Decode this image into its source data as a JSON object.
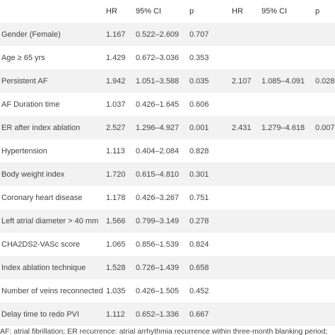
{
  "table": {
    "header": [
      "HR",
      "95% CI",
      "p",
      "HR",
      "95% CI",
      "p"
    ],
    "rows": [
      {
        "label": "Gender (Female)",
        "hr": "1.167",
        "ci": "0.522–2.609",
        "p": "0.707"
      },
      {
        "label": "Age ≥ 65 yrs",
        "hr": "1.429",
        "ci": "0.672–3.036",
        "p": "0.353"
      },
      {
        "label": "Persistent AF",
        "hr": "1.942",
        "ci": "1.051–3.588",
        "p": "0.035",
        "hr2": "2.107",
        "ci2": "1.085–4.091",
        "p2": "0.028"
      },
      {
        "label": "AF Duration time",
        "hr": "1.037",
        "ci": "0.426–1.645",
        "p": "0.606"
      },
      {
        "label": "ER after index ablation",
        "hr": "2.527",
        "ci": "1.296–4.927",
        "p": "0.001",
        "hr2": "2.431",
        "ci2": "1.279–4.618",
        "p2": "0.007"
      },
      {
        "label": "Hypertension",
        "hr": "1.113",
        "ci": "0.404–2.084",
        "p": "0.828"
      },
      {
        "label": "Body weight index",
        "hr": "1.720",
        "ci": "0.615–4.810",
        "p": "0.301"
      },
      {
        "label": "Coronary heart disease",
        "hr": "1.178",
        "ci": "0.426–3.267",
        "p": "0.751"
      },
      {
        "label": "Left atrial diameter > 40 mm",
        "hr": "1.566",
        "ci": "0.799–3.149",
        "p": "0.278"
      },
      {
        "label": "CHA2DS2-VASc score",
        "hr": "1.065",
        "ci": "0.856–1.539",
        "p": "0.824"
      },
      {
        "label": "Index ablation technique",
        "hr": "1.528",
        "ci": "0.726–1.439",
        "p": "0.658"
      },
      {
        "label": "Number of veins reconnected",
        "hr": "1.035",
        "ci": "0.426–1.505",
        "p": "0.452"
      },
      {
        "label": "Delay time to redo PVI",
        "hr": "1.112",
        "ci": "0.652–1.336",
        "p": "0.667"
      }
    ],
    "footnote": "AF: atrial fibrillation; ER recurrence: atrial arrhythmia recurrence within three-month blanking period;"
  }
}
